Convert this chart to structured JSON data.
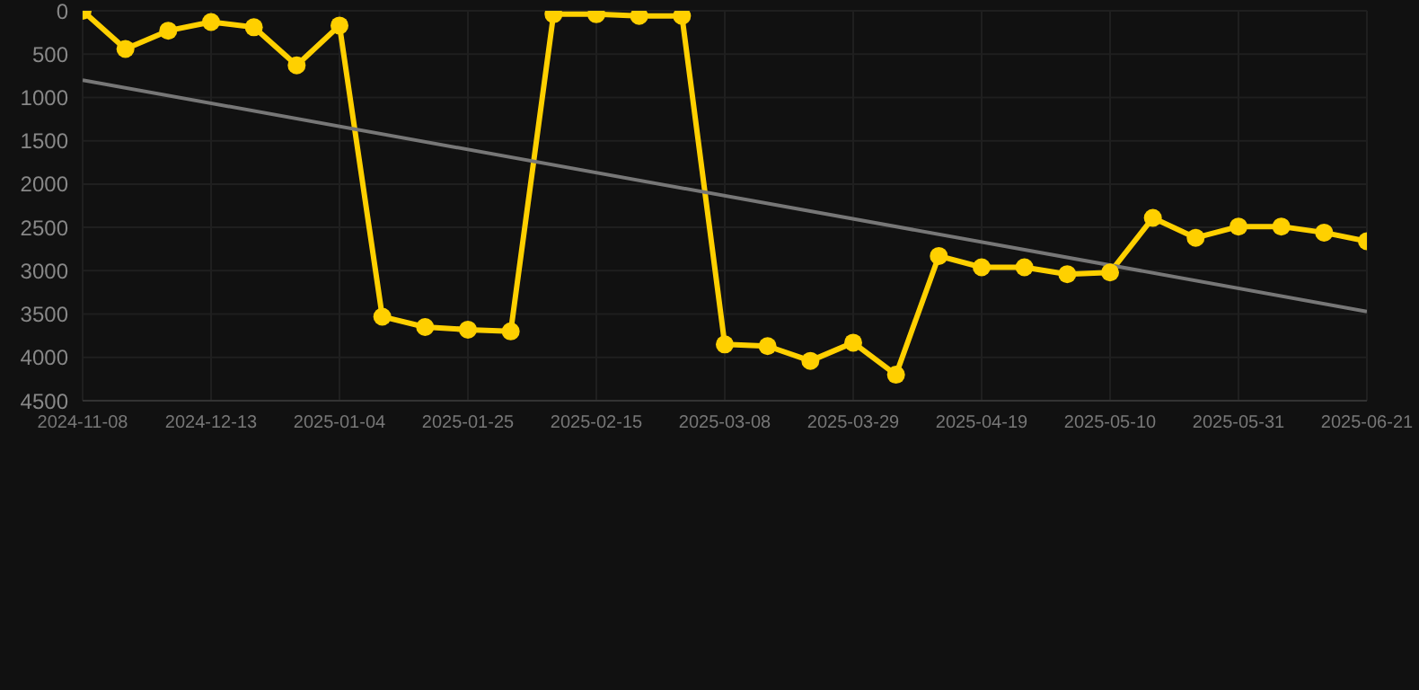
{
  "chart_data": {
    "type": "line",
    "categories": [
      "2024-11-08",
      null,
      null,
      "2024-12-13",
      null,
      null,
      "2025-01-04",
      null,
      null,
      "2025-01-25",
      null,
      null,
      "2025-02-15",
      null,
      null,
      "2025-03-08",
      null,
      null,
      "2025-03-29",
      null,
      null,
      "2025-04-19",
      null,
      null,
      "2025-05-10",
      null,
      null,
      "2025-05-31",
      null,
      null,
      "2025-06-21"
    ],
    "series": [
      {
        "color": "#ffd000",
        "marker": "circle",
        "values": [
          0,
          440,
          230,
          130,
          190,
          630,
          170,
          3530,
          3650,
          3680,
          3700,
          40,
          40,
          60,
          60,
          3850,
          3870,
          4040,
          3830,
          4200,
          2830,
          2960,
          2960,
          3040,
          3020,
          2390,
          2620,
          2490,
          2490,
          2560,
          2660
        ]
      },
      {
        "color": "#777777",
        "marker": "none",
        "values": [
          800,
          null,
          null,
          null,
          null,
          null,
          null,
          null,
          null,
          null,
          null,
          null,
          null,
          null,
          null,
          null,
          null,
          null,
          null,
          null,
          null,
          null,
          null,
          null,
          null,
          null,
          null,
          null,
          null,
          null,
          3470
        ]
      }
    ],
    "ylim": [
      4500,
      0
    ],
    "yticks": [
      0,
      500,
      1000,
      1500,
      2000,
      2500,
      3000,
      3500,
      4000,
      4500
    ],
    "grid": true
  }
}
